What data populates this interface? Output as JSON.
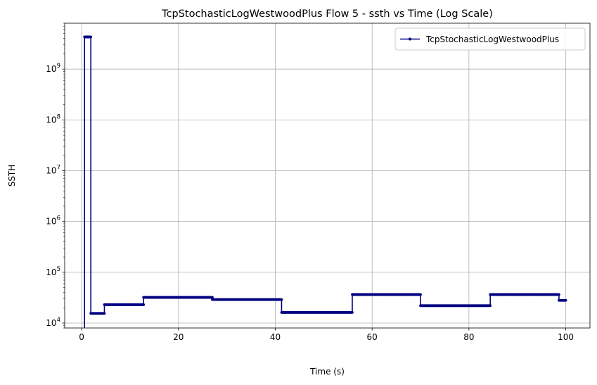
{
  "chart_data": {
    "type": "line",
    "title": "TcpStochasticLogWestwoodPlus Flow 5 - ssth vs Time (Log Scale)",
    "xlabel": "Time (s)",
    "ylabel": "SSTH",
    "xlim": [
      -3.5,
      105
    ],
    "ylim": [
      8000,
      8000000000
    ],
    "yscale": "log",
    "grid": true,
    "legend_loc": "upper right",
    "xticks": [
      0,
      20,
      40,
      60,
      80,
      100
    ],
    "yticks": [
      10000,
      100000,
      1000000,
      10000000,
      100000000,
      1000000000
    ],
    "series": [
      {
        "name": "TcpStochasticLogWestwoodPlus",
        "color": "#000080",
        "marker": "dot",
        "x": [
          0.6,
          0.6,
          1.9,
          1.9,
          4.7,
          4.7,
          12.8,
          12.8,
          27.0,
          27.0,
          41.3,
          41.3,
          55.9,
          55.9,
          70.0,
          70.0,
          84.4,
          84.4,
          98.6,
          98.6,
          100.0
        ],
        "y": [
          7000,
          4300000000,
          4300000000,
          15500,
          15500,
          23000,
          23000,
          32000,
          32000,
          29000,
          29000,
          16200,
          16200,
          36500,
          36500,
          22000,
          22000,
          36500,
          36500,
          28000,
          28000
        ]
      }
    ]
  }
}
